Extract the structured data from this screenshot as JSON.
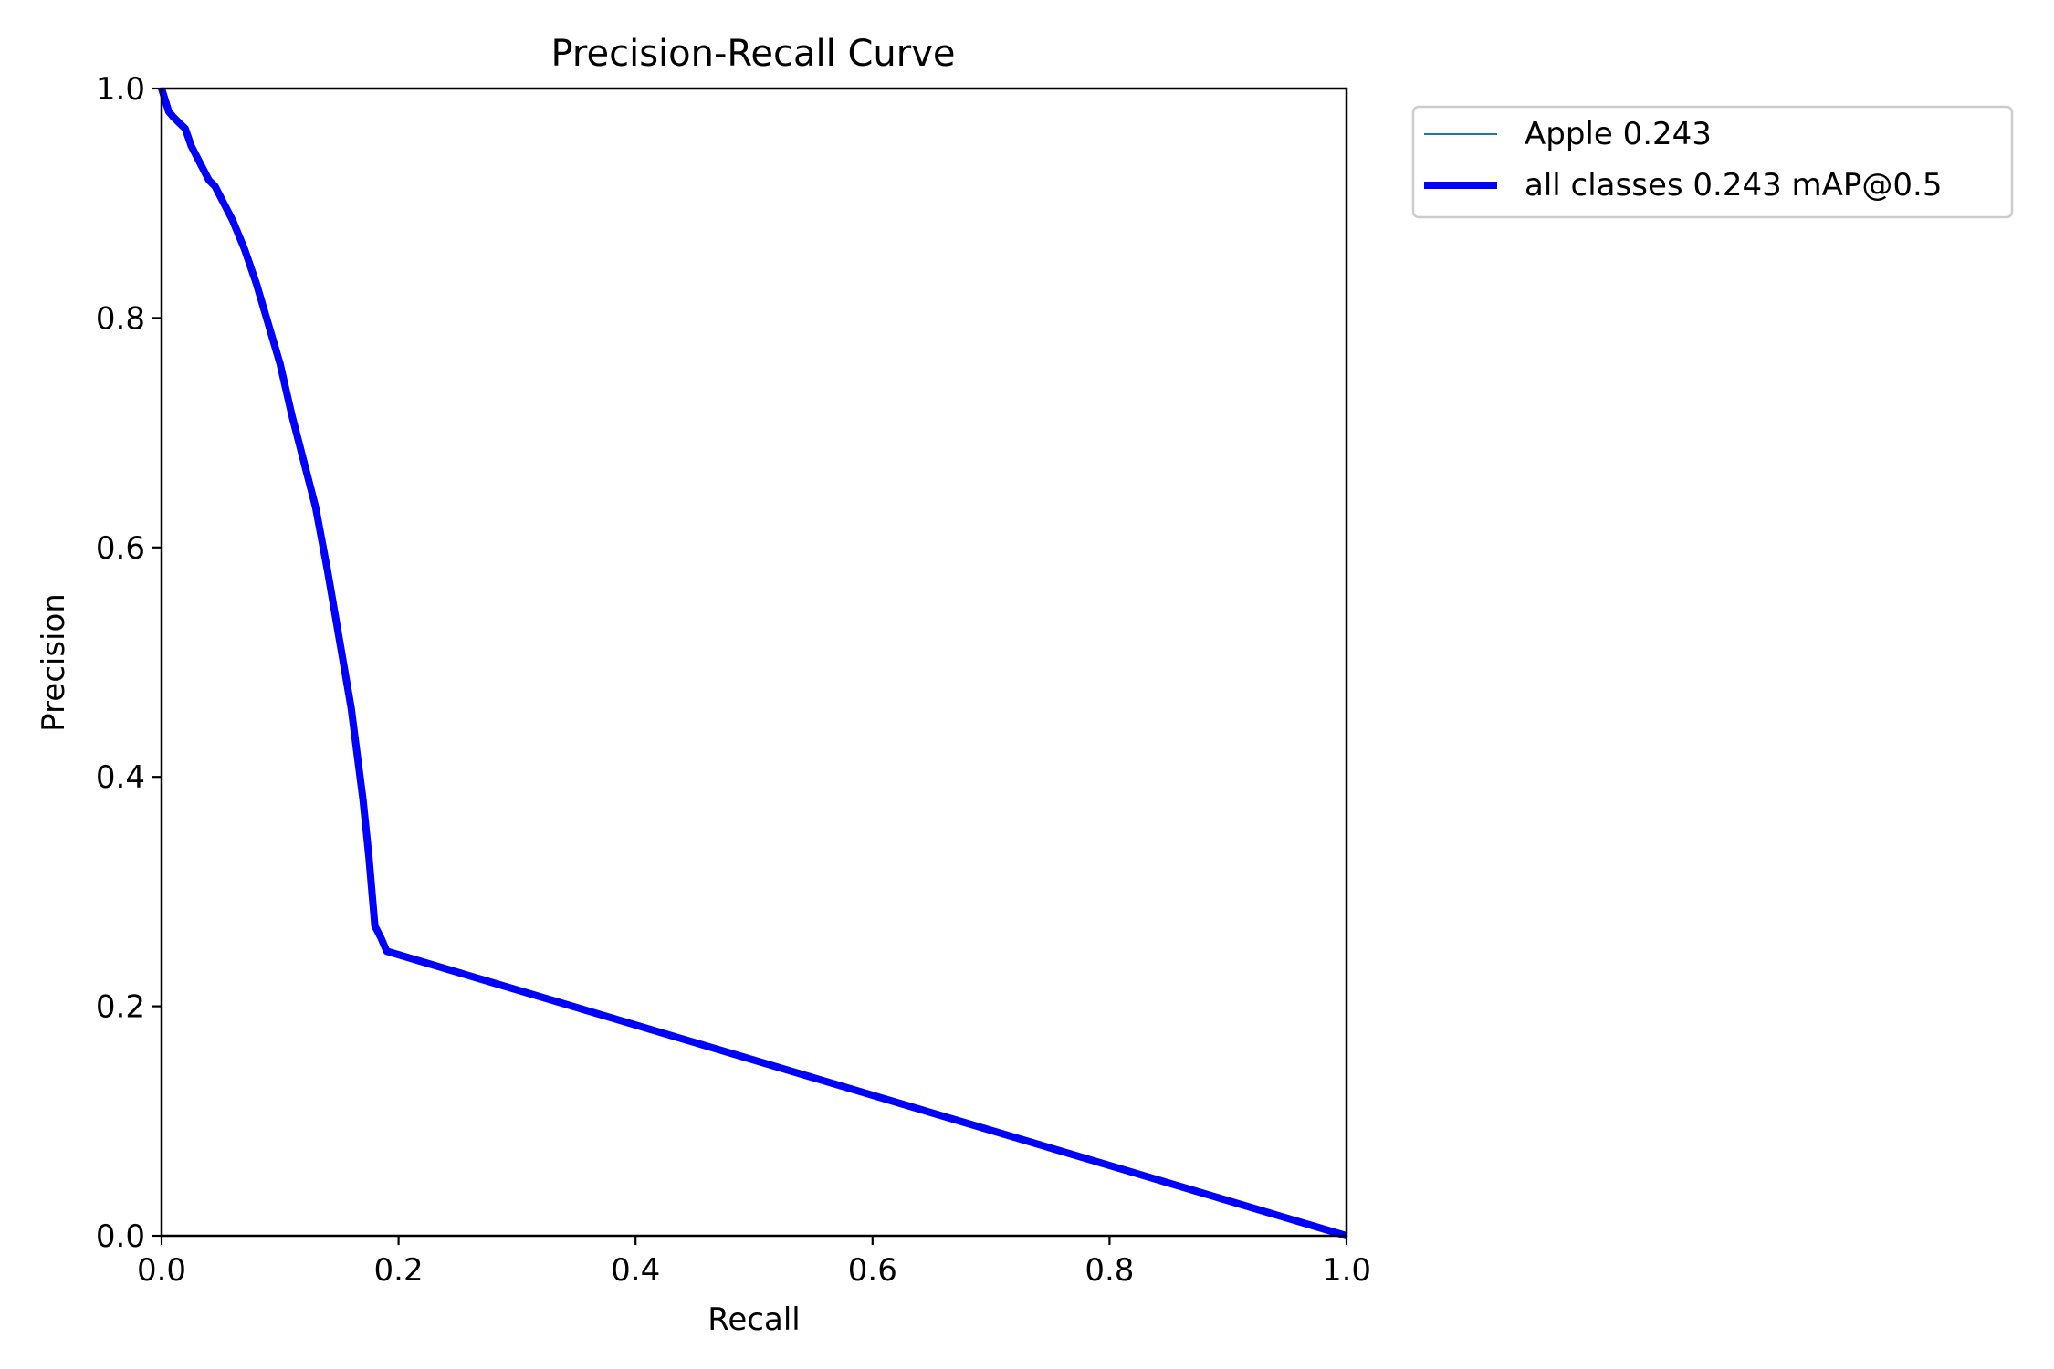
{
  "chart_data": {
    "type": "line",
    "title": "Precision-Recall Curve",
    "xlabel": "Recall",
    "ylabel": "Precision",
    "xlim": [
      0,
      1
    ],
    "ylim": [
      0,
      1
    ],
    "xticks": [
      "0.0",
      "0.2",
      "0.4",
      "0.6",
      "0.8",
      "1.0"
    ],
    "yticks": [
      "0.0",
      "0.2",
      "0.4",
      "0.6",
      "0.8",
      "1.0"
    ],
    "grid": false,
    "legend_position": "outside-upper-right",
    "series": [
      {
        "name": "Apple 0.243",
        "color": "#1f77b4",
        "line": "thin",
        "x": [
          0.0,
          0.003,
          0.006,
          0.01,
          0.015,
          0.02,
          0.025,
          0.03,
          0.035,
          0.04,
          0.045,
          0.05,
          0.06,
          0.07,
          0.08,
          0.09,
          0.1,
          0.11,
          0.12,
          0.13,
          0.14,
          0.15,
          0.16,
          0.17,
          0.175,
          0.18,
          0.185,
          0.19,
          1.0
        ],
        "y": [
          1.0,
          0.99,
          0.98,
          0.975,
          0.97,
          0.965,
          0.95,
          0.94,
          0.93,
          0.92,
          0.915,
          0.905,
          0.885,
          0.86,
          0.83,
          0.795,
          0.76,
          0.715,
          0.675,
          0.635,
          0.58,
          0.52,
          0.46,
          0.38,
          0.33,
          0.27,
          0.26,
          0.248,
          0.0
        ]
      },
      {
        "name": "all classes 0.243 mAP@0.5",
        "color": "#0000ff",
        "line": "thick",
        "x": [
          0.0,
          0.003,
          0.006,
          0.01,
          0.015,
          0.02,
          0.025,
          0.03,
          0.035,
          0.04,
          0.045,
          0.05,
          0.06,
          0.07,
          0.08,
          0.09,
          0.1,
          0.11,
          0.12,
          0.13,
          0.14,
          0.15,
          0.16,
          0.17,
          0.175,
          0.18,
          0.185,
          0.19,
          1.0
        ],
        "y": [
          1.0,
          0.99,
          0.98,
          0.975,
          0.97,
          0.965,
          0.95,
          0.94,
          0.93,
          0.92,
          0.915,
          0.905,
          0.885,
          0.86,
          0.83,
          0.795,
          0.76,
          0.715,
          0.675,
          0.635,
          0.58,
          0.52,
          0.46,
          0.38,
          0.33,
          0.27,
          0.26,
          0.248,
          0.0
        ]
      }
    ]
  }
}
